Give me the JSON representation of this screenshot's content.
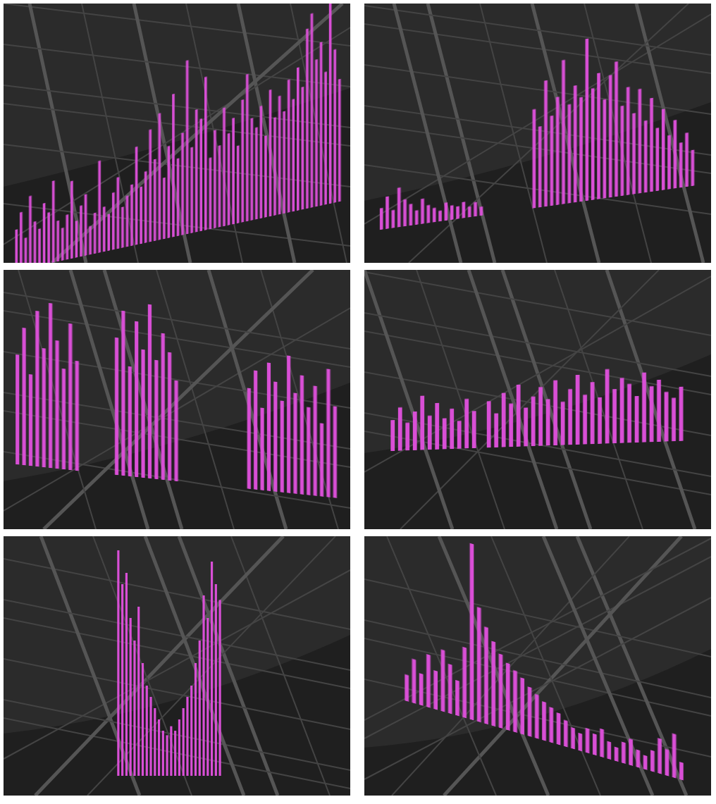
{
  "chart_data": [
    {
      "type": "bar",
      "color": "#d94fd6",
      "grid": false,
      "tick_labels": false,
      "values": [
        20,
        28,
        15,
        35,
        22,
        18,
        30,
        25,
        40,
        20,
        16,
        22,
        38,
        18,
        25,
        30,
        14,
        20,
        45,
        22,
        18,
        28,
        35,
        20,
        25,
        30,
        48,
        28,
        35,
        55,
        40,
        62,
        30,
        45,
        70,
        38,
        50,
        85,
        42,
        60,
        55,
        75,
        35,
        48,
        40,
        58,
        45,
        52,
        38,
        60,
        72,
        50,
        45,
        55,
        40,
        62,
        48,
        58,
        50,
        65,
        55,
        70,
        60,
        88,
        95,
        72,
        80,
        65,
        100,
        75,
        60
      ]
    },
    {
      "type": "bar",
      "color": "#d94fd6",
      "grid": false,
      "tick_labels": false,
      "values": [
        12,
        18,
        10,
        22,
        15,
        12,
        8,
        14,
        10,
        8,
        6,
        10,
        8,
        7,
        9,
        6,
        8,
        5,
        null,
        null,
        null,
        null,
        null,
        null,
        null,
        null,
        55,
        45,
        70,
        50,
        60,
        80,
        55,
        65,
        58,
        90,
        62,
        70,
        55,
        68,
        75,
        50,
        60,
        45,
        58,
        40,
        52,
        35,
        45,
        30,
        38,
        25,
        30,
        20
      ]
    },
    {
      "type": "bar",
      "color": "#d94fd6",
      "grid": false,
      "tick_labels": false,
      "values": [
        60,
        75,
        50,
        85,
        65,
        90,
        70,
        55,
        80,
        60,
        null,
        null,
        null,
        null,
        null,
        75,
        90,
        60,
        85,
        70,
        95,
        65,
        80,
        70,
        55,
        null,
        null,
        null,
        null,
        null,
        null,
        null,
        null,
        null,
        null,
        55,
        65,
        45,
        70,
        60,
        50,
        75,
        55,
        65,
        48,
        60,
        40,
        70,
        50
      ]
    },
    {
      "type": "bar",
      "color": "#d94fd6",
      "grid": false,
      "tick_labels": false,
      "values": [
        20,
        28,
        18,
        25,
        35,
        22,
        30,
        20,
        26,
        18,
        32,
        24,
        null,
        30,
        22,
        35,
        28,
        40,
        25,
        32,
        38,
        30,
        42,
        28,
        36,
        45,
        32,
        40,
        30,
        48,
        35,
        42,
        38,
        30,
        45,
        36,
        40,
        32,
        28,
        35
      ]
    },
    {
      "type": "bar",
      "color": "#d94fd6",
      "grid": false,
      "tick_labels": false,
      "values": [
        100,
        85,
        90,
        70,
        60,
        75,
        50,
        40,
        35,
        30,
        25,
        20,
        18,
        22,
        20,
        25,
        30,
        35,
        40,
        50,
        60,
        80,
        70,
        95,
        85,
        78
      ]
    },
    {
      "type": "bar",
      "color": "#d94fd6",
      "grid": false,
      "tick_labels": false,
      "values": [
        15,
        25,
        18,
        30,
        22,
        35,
        28,
        20,
        40,
        100,
        65,
        55,
        48,
        42,
        38,
        35,
        32,
        28,
        25,
        22,
        20,
        18,
        15,
        12,
        10,
        14,
        12,
        16,
        10,
        8,
        12,
        15,
        10,
        8,
        12,
        20,
        15,
        25,
        10
      ]
    }
  ]
}
